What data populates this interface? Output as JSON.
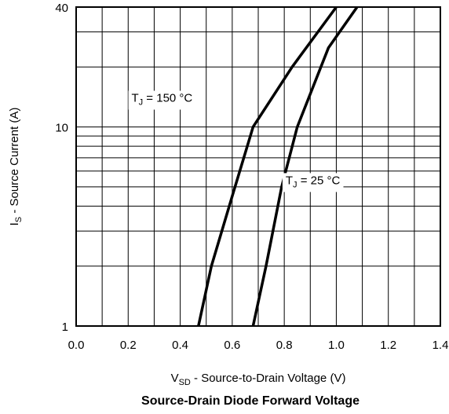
{
  "chart_data": {
    "type": "line",
    "title": "Source-Drain Diode Forward Voltage",
    "xlabel": {
      "main": "V",
      "sub": "SD",
      "rest": " - Source-to-Drain Voltage (V)"
    },
    "ylabel": {
      "main": "I",
      "sub": "S",
      "rest": " - Source Current (A)"
    },
    "xlim": [
      0.0,
      1.4
    ],
    "ylim": [
      1,
      40
    ],
    "yscale": "log",
    "grid": true,
    "x_ticks": [
      "0.0",
      "0.2",
      "0.4",
      "0.6",
      "0.8",
      "1.0",
      "1.2",
      "1.4"
    ],
    "y_ticks": [
      {
        "value": 1,
        "label": "1"
      },
      {
        "value": 10,
        "label": "10"
      },
      {
        "value": 40,
        "label": "40"
      }
    ],
    "series": [
      {
        "x": [
          0.47,
          0.52,
          0.6,
          0.68,
          0.83,
          1.0
        ],
        "y": [
          1,
          2,
          4.5,
          10,
          20,
          40
        ]
      },
      {
        "x": [
          0.68,
          0.73,
          0.79,
          0.85,
          0.97,
          1.08
        ],
        "y": [
          1,
          2,
          5,
          10,
          25,
          40
        ]
      }
    ],
    "annotations": [
      {
        "text_main": "T",
        "text_sub": "J",
        "text_rest": " = 150 °C",
        "x": 0.33,
        "y": 14
      },
      {
        "text_main": "T",
        "text_sub": "J",
        "text_rest": " = 25 °C",
        "x": 0.91,
        "y": 5.4
      }
    ]
  }
}
